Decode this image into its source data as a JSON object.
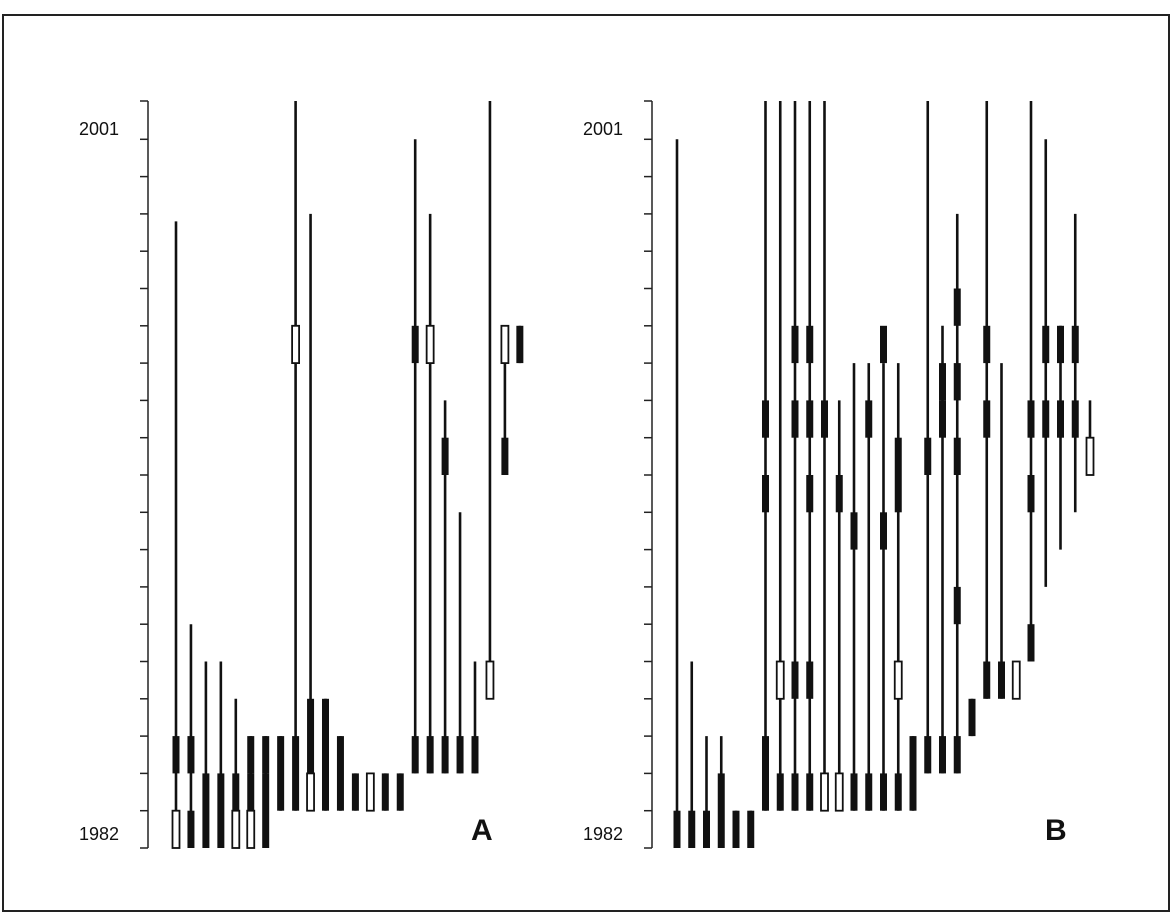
{
  "panels": [
    {
      "id": "A",
      "label": "A",
      "axis_top_label": "2001",
      "axis_bottom_label": "1982",
      "tracks": [
        {
          "thin": [
            1982.6,
            1998.8
          ],
          "bars": [
            {
              "y0": 1982,
              "y1": 1983,
              "open": true
            },
            {
              "y0": 1984,
              "y1": 1985,
              "open": false
            }
          ]
        },
        {
          "thin": [
            1982,
            1988
          ],
          "bars": [
            {
              "y0": 1982,
              "y1": 1983,
              "open": false
            },
            {
              "y0": 1984,
              "y1": 1985,
              "open": false
            }
          ]
        },
        {
          "thin": [
            1982,
            1987
          ],
          "bars": [
            {
              "y0": 1982,
              "y1": 1984,
              "open": false
            }
          ]
        },
        {
          "thin": [
            1982,
            1987
          ],
          "bars": [
            {
              "y0": 1982,
              "y1": 1984,
              "open": false
            }
          ]
        },
        {
          "thin": [
            1982,
            1986
          ],
          "bars": [
            {
              "y0": 1982,
              "y1": 1983,
              "open": true
            },
            {
              "y0": 1983,
              "y1": 1984,
              "open": false
            }
          ]
        },
        {
          "thin": [
            1982,
            1985
          ],
          "bars": [
            {
              "y0": 1982,
              "y1": 1983,
              "open": true
            },
            {
              "y0": 1983,
              "y1": 1984,
              "open": false
            },
            {
              "y0": 1984,
              "y1": 1985,
              "open": false
            }
          ]
        },
        {
          "thin": [
            1982,
            1985
          ],
          "bars": [
            {
              "y0": 1982,
              "y1": 1984,
              "open": false
            },
            {
              "y0": 1984,
              "y1": 1985,
              "open": false
            }
          ]
        },
        {
          "thin": [
            1983,
            1985
          ],
          "bars": [
            {
              "y0": 1983,
              "y1": 1985,
              "open": false
            }
          ]
        },
        {
          "thin": [
            1983,
            2002
          ],
          "bars": [
            {
              "y0": 1983,
              "y1": 1985,
              "open": false
            },
            {
              "y0": 1995,
              "y1": 1996,
              "open": true
            }
          ]
        },
        {
          "thin": [
            1983,
            1999
          ],
          "bars": [
            {
              "y0": 1983,
              "y1": 1984,
              "open": true
            },
            {
              "y0": 1984,
              "y1": 1986,
              "open": false
            }
          ]
        },
        {
          "thin": [
            1983,
            1986
          ],
          "bars": [
            {
              "y0": 1983,
              "y1": 1986,
              "open": false
            }
          ]
        },
        {
          "thin": [
            1983,
            1985
          ],
          "bars": [
            {
              "y0": 1983,
              "y1": 1985,
              "open": false
            }
          ]
        },
        {
          "thin": [
            1983,
            1984
          ],
          "bars": [
            {
              "y0": 1983,
              "y1": 1984,
              "open": false
            }
          ]
        },
        {
          "thin": [
            1983,
            1984
          ],
          "bars": [
            {
              "y0": 1983,
              "y1": 1984,
              "open": true
            }
          ]
        },
        {
          "thin": [
            1983,
            1984
          ],
          "bars": [
            {
              "y0": 1983,
              "y1": 1984,
              "open": false
            }
          ]
        },
        {
          "thin": [
            1983,
            1984
          ],
          "bars": [
            {
              "y0": 1983,
              "y1": 1984,
              "open": false
            }
          ]
        },
        {
          "thin": [
            1984,
            2001
          ],
          "bars": [
            {
              "y0": 1984,
              "y1": 1985,
              "open": false
            },
            {
              "y0": 1995,
              "y1": 1996,
              "open": false
            }
          ]
        },
        {
          "thin": [
            1984,
            1999
          ],
          "bars": [
            {
              "y0": 1984,
              "y1": 1985,
              "open": false
            },
            {
              "y0": 1995,
              "y1": 1996,
              "open": true
            }
          ]
        },
        {
          "thin": [
            1984,
            1994
          ],
          "bars": [
            {
              "y0": 1984,
              "y1": 1985,
              "open": false
            },
            {
              "y0": 1992,
              "y1": 1993,
              "open": false
            }
          ]
        },
        {
          "thin": [
            1984,
            1991
          ],
          "bars": [
            {
              "y0": 1984,
              "y1": 1985,
              "open": false
            }
          ]
        },
        {
          "thin": [
            1984,
            1987
          ],
          "bars": [
            {
              "y0": 1984,
              "y1": 1985,
              "open": false
            }
          ]
        },
        {
          "thin": [
            1986,
            2002
          ],
          "bars": [
            {
              "y0": 1986,
              "y1": 1987,
              "open": true
            }
          ]
        },
        {
          "thin": [
            1992,
            1996
          ],
          "bars": [
            {
              "y0": 1992,
              "y1": 1993,
              "open": false
            },
            {
              "y0": 1995,
              "y1": 1996,
              "open": true
            }
          ]
        },
        {
          "thin": [
            1995,
            1996
          ],
          "bars": [
            {
              "y0": 1995,
              "y1": 1996,
              "open": false
            }
          ]
        }
      ]
    },
    {
      "id": "B",
      "label": "B",
      "axis_top_label": "2001",
      "axis_bottom_label": "1982",
      "tracks": [
        {
          "thin": [
            1982,
            2001
          ],
          "bars": [
            {
              "y0": 1982,
              "y1": 1983,
              "open": false
            }
          ]
        },
        {
          "thin": [
            1982,
            1987
          ],
          "bars": [
            {
              "y0": 1982,
              "y1": 1983,
              "open": false
            }
          ]
        },
        {
          "thin": [
            1982,
            1985
          ],
          "bars": [
            {
              "y0": 1982,
              "y1": 1983,
              "open": false
            }
          ]
        },
        {
          "thin": [
            1982,
            1985
          ],
          "bars": [
            {
              "y0": 1982,
              "y1": 1984,
              "open": false
            }
          ]
        },
        {
          "thin": [
            1982,
            1983
          ],
          "bars": [
            {
              "y0": 1982,
              "y1": 1983,
              "open": false
            }
          ]
        },
        {
          "thin": [
            1982,
            1983
          ],
          "bars": [
            {
              "y0": 1982,
              "y1": 1983,
              "open": false
            }
          ]
        },
        {
          "thin": [
            1983,
            2002
          ],
          "bars": [
            {
              "y0": 1983,
              "y1": 1985,
              "open": false
            },
            {
              "y0": 1991,
              "y1": 1992,
              "open": false
            },
            {
              "y0": 1993,
              "y1": 1994,
              "open": false
            }
          ]
        },
        {
          "thin": [
            1983,
            2002
          ],
          "bars": [
            {
              "y0": 1983,
              "y1": 1984,
              "open": false
            },
            {
              "y0": 1986,
              "y1": 1987,
              "open": true
            }
          ]
        },
        {
          "thin": [
            1983,
            2002
          ],
          "bars": [
            {
              "y0": 1983,
              "y1": 1984,
              "open": false
            },
            {
              "y0": 1986,
              "y1": 1987,
              "open": false
            },
            {
              "y0": 1993,
              "y1": 1994,
              "open": false
            },
            {
              "y0": 1995,
              "y1": 1996,
              "open": false
            }
          ]
        },
        {
          "thin": [
            1983,
            2002
          ],
          "bars": [
            {
              "y0": 1983,
              "y1": 1984,
              "open": false
            },
            {
              "y0": 1986,
              "y1": 1987,
              "open": false
            },
            {
              "y0": 1991,
              "y1": 1992,
              "open": false
            },
            {
              "y0": 1993,
              "y1": 1994,
              "open": false
            },
            {
              "y0": 1995,
              "y1": 1996,
              "open": false
            }
          ]
        },
        {
          "thin": [
            1983,
            2002
          ],
          "bars": [
            {
              "y0": 1983,
              "y1": 1984,
              "open": true
            },
            {
              "y0": 1993,
              "y1": 1994,
              "open": false
            }
          ]
        },
        {
          "thin": [
            1983,
            1994
          ],
          "bars": [
            {
              "y0": 1983,
              "y1": 1984,
              "open": true
            },
            {
              "y0": 1991,
              "y1": 1992,
              "open": false
            }
          ]
        },
        {
          "thin": [
            1983,
            1995
          ],
          "bars": [
            {
              "y0": 1983,
              "y1": 1984,
              "open": false
            },
            {
              "y0": 1990,
              "y1": 1991,
              "open": false
            }
          ]
        },
        {
          "thin": [
            1983,
            1995
          ],
          "bars": [
            {
              "y0": 1983,
              "y1": 1984,
              "open": false
            },
            {
              "y0": 1993,
              "y1": 1994,
              "open": false
            }
          ]
        },
        {
          "thin": [
            1983,
            1995
          ],
          "bars": [
            {
              "y0": 1983,
              "y1": 1984,
              "open": false
            },
            {
              "y0": 1990,
              "y1": 1991,
              "open": false
            },
            {
              "y0": 1995,
              "y1": 1996,
              "open": false
            }
          ]
        },
        {
          "thin": [
            1983,
            1995
          ],
          "bars": [
            {
              "y0": 1983,
              "y1": 1984,
              "open": false
            },
            {
              "y0": 1986,
              "y1": 1987,
              "open": true
            },
            {
              "y0": 1991,
              "y1": 1993,
              "open": false
            }
          ]
        },
        {
          "thin": [
            1983,
            1985
          ],
          "bars": [
            {
              "y0": 1983,
              "y1": 1985,
              "open": false
            }
          ]
        },
        {
          "thin": [
            1984,
            2002
          ],
          "bars": [
            {
              "y0": 1984,
              "y1": 1985,
              "open": false
            },
            {
              "y0": 1992,
              "y1": 1993,
              "open": false
            }
          ]
        },
        {
          "thin": [
            1984,
            1996
          ],
          "bars": [
            {
              "y0": 1984,
              "y1": 1985,
              "open": false
            },
            {
              "y0": 1993,
              "y1": 1994,
              "open": false
            },
            {
              "y0": 1994,
              "y1": 1995,
              "open": false
            }
          ]
        },
        {
          "thin": [
            1984,
            1999
          ],
          "bars": [
            {
              "y0": 1984,
              "y1": 1985,
              "open": false
            },
            {
              "y0": 1988,
              "y1": 1989,
              "open": false
            },
            {
              "y0": 1992,
              "y1": 1993,
              "open": false
            },
            {
              "y0": 1994,
              "y1": 1995,
              "open": false
            },
            {
              "y0": 1996,
              "y1": 1997,
              "open": false
            }
          ]
        },
        {
          "thin": [
            1985,
            1986
          ],
          "bars": [
            {
              "y0": 1985,
              "y1": 1986,
              "open": false
            }
          ]
        },
        {
          "thin": [
            1986,
            2002
          ],
          "bars": [
            {
              "y0": 1986,
              "y1": 1987,
              "open": false
            },
            {
              "y0": 1993,
              "y1": 1994,
              "open": false
            },
            {
              "y0": 1995,
              "y1": 1996,
              "open": false
            }
          ]
        },
        {
          "thin": [
            1986,
            1995
          ],
          "bars": [
            {
              "y0": 1986,
              "y1": 1987,
              "open": false
            }
          ]
        },
        {
          "thin": [
            1986,
            1987
          ],
          "bars": [
            {
              "y0": 1986,
              "y1": 1987,
              "open": true
            }
          ]
        },
        {
          "thin": [
            1987,
            2002
          ],
          "bars": [
            {
              "y0": 1987,
              "y1": 1988,
              "open": false
            },
            {
              "y0": 1991,
              "y1": 1992,
              "open": false
            },
            {
              "y0": 1993,
              "y1": 1994,
              "open": false
            }
          ]
        },
        {
          "thin": [
            1989,
            2001
          ],
          "bars": [
            {
              "y0": 1993,
              "y1": 1994,
              "open": false
            },
            {
              "y0": 1995,
              "y1": 1996,
              "open": false
            }
          ]
        },
        {
          "thin": [
            1990,
            1996
          ],
          "bars": [
            {
              "y0": 1993,
              "y1": 1994,
              "open": false
            },
            {
              "y0": 1995,
              "y1": 1996,
              "open": false
            }
          ]
        },
        {
          "thin": [
            1991,
            1999
          ],
          "bars": [
            {
              "y0": 1993,
              "y1": 1994,
              "open": false
            },
            {
              "y0": 1995,
              "y1": 1996,
              "open": false
            }
          ]
        },
        {
          "thin": [
            1992,
            1994
          ],
          "bars": [
            {
              "y0": 1992,
              "y1": 1993,
              "open": true
            }
          ]
        }
      ]
    }
  ]
}
